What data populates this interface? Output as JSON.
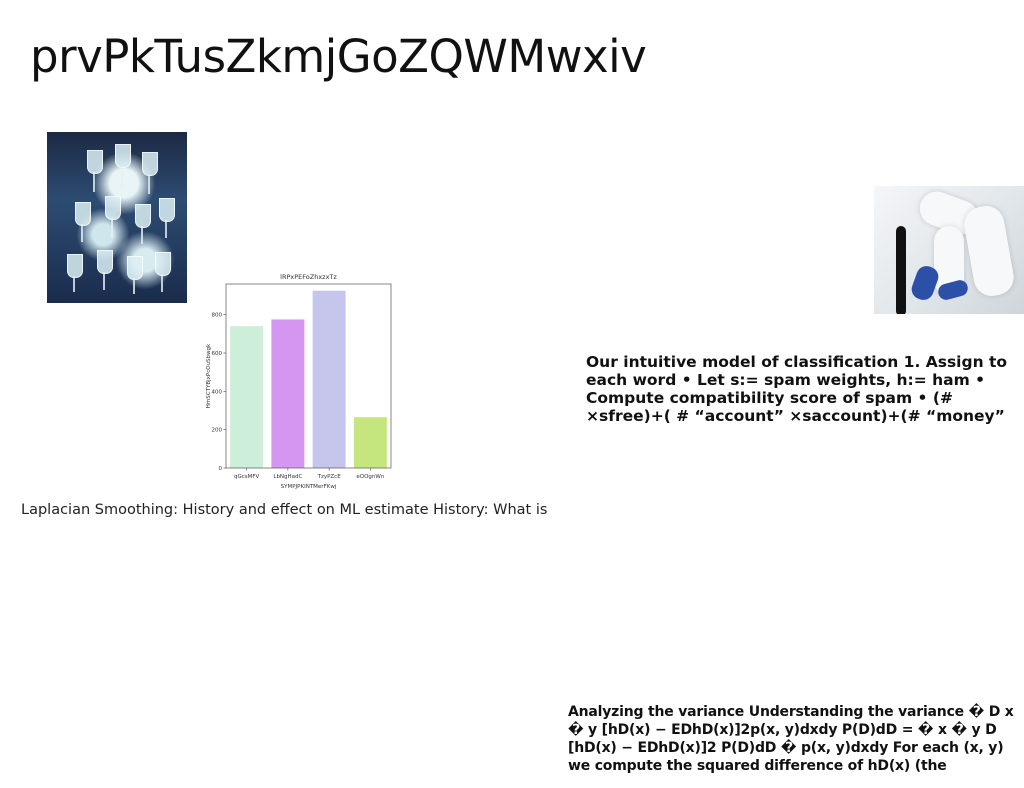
{
  "page": {
    "title": "prvPkTusZkmjGoZQWMwxiv"
  },
  "images": {
    "glasses_photo": "champagne-glasses-photo",
    "feet_photo": "blue-socks-feet-photo"
  },
  "texts": {
    "caption_left": "Laplacian Smoothing: History and effect on ML estimate History: What is",
    "paragraph_right": "Our intuitive model of classification 1. Assign to each word • Let s:= spam weights, h:= ham • Compute compatibility score of spam • (# ×sfree)+( # “account” ×saccount)+(# “money”",
    "paragraph_bottom": "Analyzing the variance Understanding the variance � D x � y [hD(x) − EDhD(x)]2p(x, y)dxdy P(D)dD = � x � y D [hD(x) − EDhD(x)]2 P(D)dD � p(x, y)dxdy For each (x, y) we compute the squared difference of hD(x) (the"
  },
  "chart_data": {
    "type": "bar",
    "title": "lRPxPEFoZhxzxTz",
    "xlabel": "SYMPJPKINTMerFKwj",
    "ylabel": "HmSCTYBjxPcOuSbwgk",
    "categories": [
      "qGcsMFV",
      "LbNgHadC",
      "TzyPZcE",
      "eOOgnWn"
    ],
    "values": [
      740,
      775,
      925,
      265
    ],
    "colors": [
      "#cdeed9",
      "#d596f2",
      "#c6c6ec",
      "#c5e67e"
    ],
    "ylim": [
      0,
      960
    ],
    "yticks": [
      0,
      200,
      400,
      600,
      800
    ],
    "grid": false
  }
}
